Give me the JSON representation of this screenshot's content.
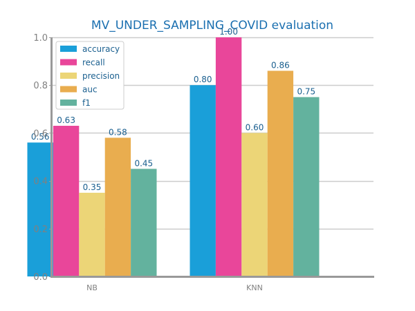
{
  "chart_data": {
    "type": "bar",
    "title": "MV_UNDER_SAMPLING_COVID evaluation",
    "xlabel": "",
    "ylabel": "",
    "categories": [
      "NB",
      "KNN"
    ],
    "ylim": [
      0,
      1
    ],
    "yticks": [
      0.0,
      0.2,
      0.4,
      0.6,
      0.8,
      1.0
    ],
    "ytick_labels": [
      "0.0",
      "0.2",
      "0.4",
      "0.6",
      "0.8",
      "1.0"
    ],
    "grid": true,
    "legend_position": "top-left",
    "series": [
      {
        "name": "accuracy",
        "color": "#1a9fd9",
        "values": [
          0.56,
          0.8
        ],
        "labels": [
          "0.56",
          "0.80"
        ]
      },
      {
        "name": "recall",
        "color": "#e9469a",
        "values": [
          0.63,
          1.0
        ],
        "labels": [
          "0.63",
          "1.00"
        ]
      },
      {
        "name": "precision",
        "color": "#ecd577",
        "values": [
          0.35,
          0.6
        ],
        "labels": [
          "0.35",
          "0.60"
        ]
      },
      {
        "name": "auc",
        "color": "#e9ad4f",
        "values": [
          0.58,
          0.86
        ],
        "labels": [
          "0.58",
          "0.86"
        ]
      },
      {
        "name": "f1",
        "color": "#63b29e",
        "values": [
          0.45,
          0.75
        ],
        "labels": [
          "0.45",
          "0.75"
        ]
      }
    ]
  }
}
